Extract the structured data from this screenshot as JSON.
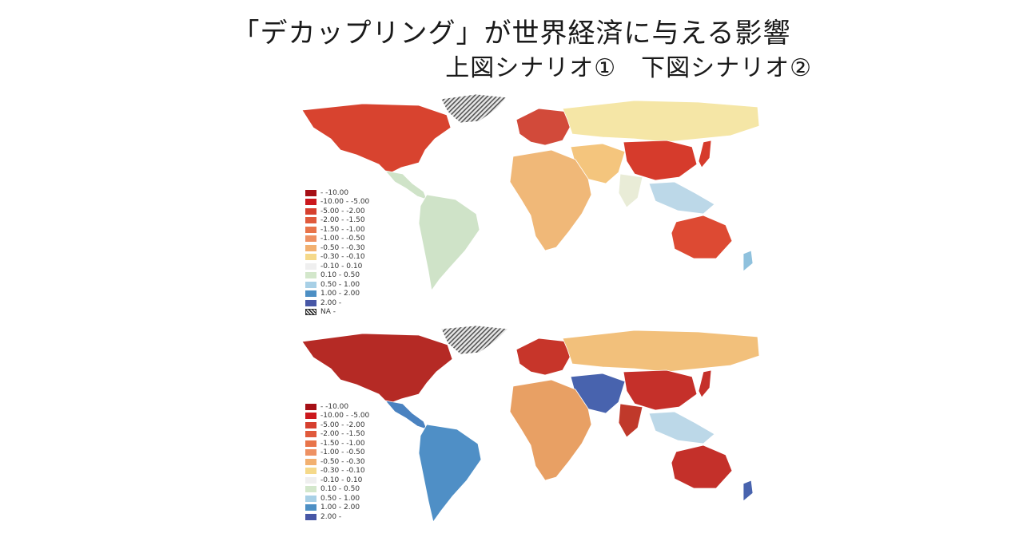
{
  "header": {
    "title": "「デカップリング」が世界経済に与える影響",
    "subtitle": "上図シナリオ①　下図シナリオ②"
  },
  "maps": [
    {
      "scenario": "①",
      "colors": {
        "north_america": "#d8432f",
        "greenland": "#9a9a9a",
        "central_america": "#cfe3c8",
        "south_america": "#cfe3c8",
        "europe": "#d24a3a",
        "russia": "#f5e6a6",
        "china": "#d63b2c",
        "middle_east": "#f4c57d",
        "africa": "#f0b878",
        "india": "#e9ecd7",
        "se_asia": "#bcd8e8",
        "australia": "#dd4a33",
        "japan": "#d63b2c",
        "new_zealand": "#8fc1dd"
      }
    },
    {
      "scenario": "②",
      "colors": {
        "north_america": "#b52a25",
        "greenland": "#9a9a9a",
        "central_america": "#4a82c0",
        "south_america": "#4f8fc6",
        "europe": "#c7352a",
        "russia": "#f2c07b",
        "china": "#c5302a",
        "middle_east": "#4863ae",
        "africa": "#e8a064",
        "india": "#c0392b",
        "se_asia": "#bcd8e8",
        "australia": "#c4302a",
        "japan": "#c5302a",
        "new_zealand": "#4863ae"
      }
    }
  ],
  "legend": {
    "items": [
      {
        "range": "     -  -10.00",
        "color": "#a50f15"
      },
      {
        "range": "-10.00 -  -5.00",
        "color": "#cb181d"
      },
      {
        "range": "-5.00 -  -2.00",
        "color": "#d6402f"
      },
      {
        "range": "-2.00 -  -1.50",
        "color": "#e05a3c"
      },
      {
        "range": "-1.50 -  -1.00",
        "color": "#e8744a"
      },
      {
        "range": "-1.00 -  -0.50",
        "color": "#ee9163"
      },
      {
        "range": "-0.50 -  -0.30",
        "color": "#f2b070"
      },
      {
        "range": "-0.30 -  -0.10",
        "color": "#f5d98a"
      },
      {
        "range": "-0.10 -  0.10",
        "color": "#efefef"
      },
      {
        "range": "0.10 -  0.50",
        "color": "#d3e7cb"
      },
      {
        "range": "0.50 -  1.00",
        "color": "#a8d0e6"
      },
      {
        "range": "1.00 -  2.00",
        "color": "#4d8fc4"
      },
      {
        "range": "2.00 -",
        "color": "#4757a6"
      }
    ],
    "na_label": "NA  -"
  }
}
